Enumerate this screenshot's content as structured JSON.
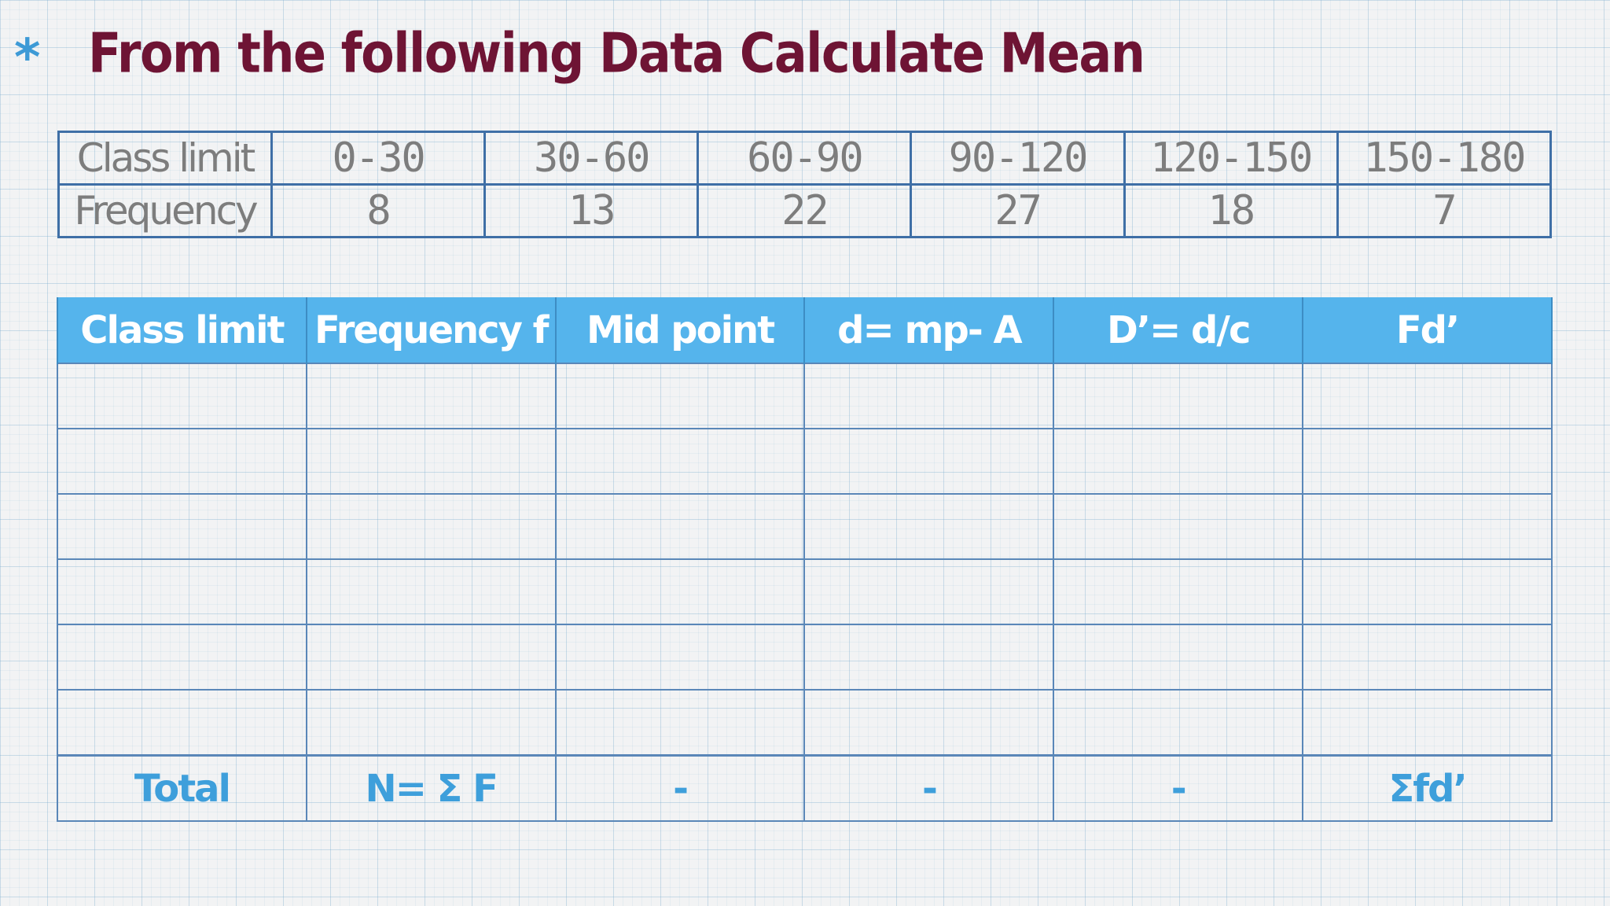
{
  "heading": {
    "bullet": "*",
    "title": "From the following Data Calculate Mean"
  },
  "given_table": {
    "rows": [
      {
        "label": "Class limit",
        "cells": [
          "0-30",
          "30-60",
          "60-90",
          "90-120",
          "120-150",
          "150-180"
        ]
      },
      {
        "label": "Frequency",
        "cells": [
          "8",
          "13",
          "22",
          "27",
          "18",
          "7"
        ]
      }
    ]
  },
  "work_table": {
    "headers": [
      "Class limit",
      "Frequency f",
      "Mid point",
      "d= mp- A",
      "D’= d/c",
      "Fd’"
    ],
    "empty_rows": 6,
    "total_row": [
      "Total",
      "N= Σ F",
      "-",
      "-",
      "-",
      "Σfd’"
    ]
  },
  "colors": {
    "title": "#6e1434",
    "accent": "#3e9fdb",
    "header_bg": "#55b4ec",
    "grid_line": "#5a87b8"
  }
}
